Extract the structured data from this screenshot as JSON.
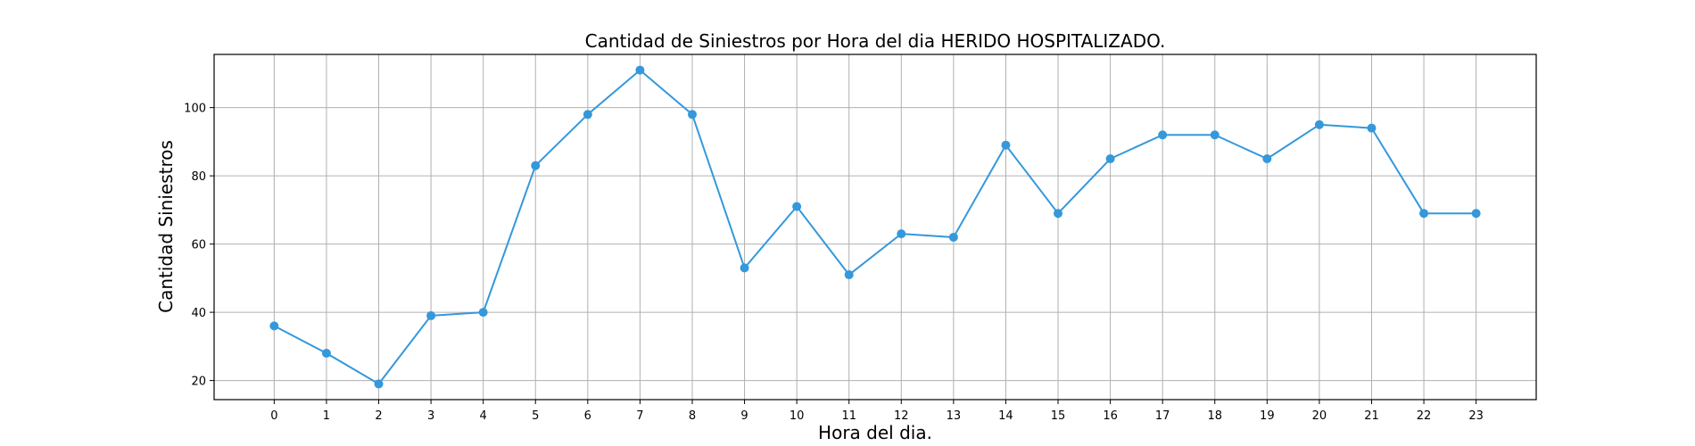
{
  "chart_data": {
    "type": "line",
    "title": "Cantidad de Siniestros por Hora del dia HERIDO HOSPITALIZADO.",
    "xlabel": "Hora del dia.",
    "ylabel": "Cantidad Siniestros",
    "x": [
      0,
      1,
      2,
      3,
      4,
      5,
      6,
      7,
      8,
      9,
      10,
      11,
      12,
      13,
      14,
      15,
      16,
      17,
      18,
      19,
      20,
      21,
      22,
      23
    ],
    "series": [
      {
        "values": [
          36,
          28,
          19,
          39,
          40,
          83,
          98,
          111,
          98,
          53,
          71,
          51,
          63,
          62,
          89,
          69,
          85,
          92,
          92,
          85,
          95,
          94,
          69,
          69
        ],
        "color": "#3498db"
      }
    ],
    "xlim": [
      -1.15,
      24.15
    ],
    "ylim": [
      14.4,
      115.6
    ],
    "xticks": [
      0,
      1,
      2,
      3,
      4,
      5,
      6,
      7,
      8,
      9,
      10,
      11,
      12,
      13,
      14,
      15,
      16,
      17,
      18,
      19,
      20,
      21,
      22,
      23
    ],
    "yticks": [
      20,
      40,
      60,
      80,
      100
    ],
    "grid": true,
    "marker": "circle"
  }
}
